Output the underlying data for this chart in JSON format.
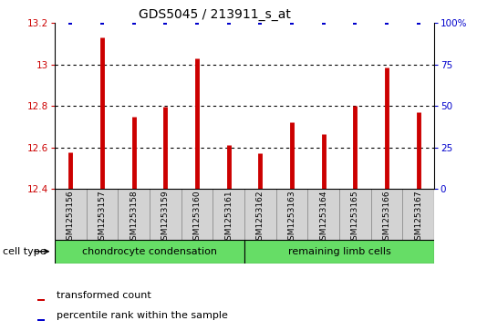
{
  "title": "GDS5045 / 213911_s_at",
  "samples": [
    "GSM1253156",
    "GSM1253157",
    "GSM1253158",
    "GSM1253159",
    "GSM1253160",
    "GSM1253161",
    "GSM1253162",
    "GSM1253163",
    "GSM1253164",
    "GSM1253165",
    "GSM1253166",
    "GSM1253167"
  ],
  "transformed_count": [
    12.575,
    13.13,
    12.75,
    12.795,
    13.03,
    12.61,
    12.57,
    12.72,
    12.665,
    12.8,
    12.985,
    12.77
  ],
  "percentile_rank": [
    100,
    100,
    100,
    100,
    100,
    100,
    100,
    100,
    100,
    100,
    100,
    100
  ],
  "ylim_left": [
    12.4,
    13.2
  ],
  "ylim_right": [
    0,
    100
  ],
  "yticks_left": [
    12.4,
    12.6,
    12.8,
    13.0,
    13.2
  ],
  "yticks_right": [
    0,
    25,
    50,
    75,
    100
  ],
  "ytick_labels_left": [
    "12.4",
    "12.6",
    "12.8",
    "13",
    "13.2"
  ],
  "ytick_labels_right": [
    "0",
    "25",
    "50",
    "75",
    "100%"
  ],
  "groups": [
    {
      "label": "chondrocyte condensation",
      "start": 0,
      "end": 5,
      "color": "#66DD66"
    },
    {
      "label": "remaining limb cells",
      "start": 6,
      "end": 11,
      "color": "#66DD66"
    }
  ],
  "bar_color": "#CC0000",
  "dot_color": "#0000CC",
  "cell_type_label": "cell type",
  "legend_bar_label": "transformed count",
  "legend_dot_label": "percentile rank within the sample",
  "tick_label_color_left": "#CC0000",
  "tick_label_color_right": "#0000CC",
  "sample_box_color": "#d3d3d3",
  "sample_box_edge": "#888888"
}
